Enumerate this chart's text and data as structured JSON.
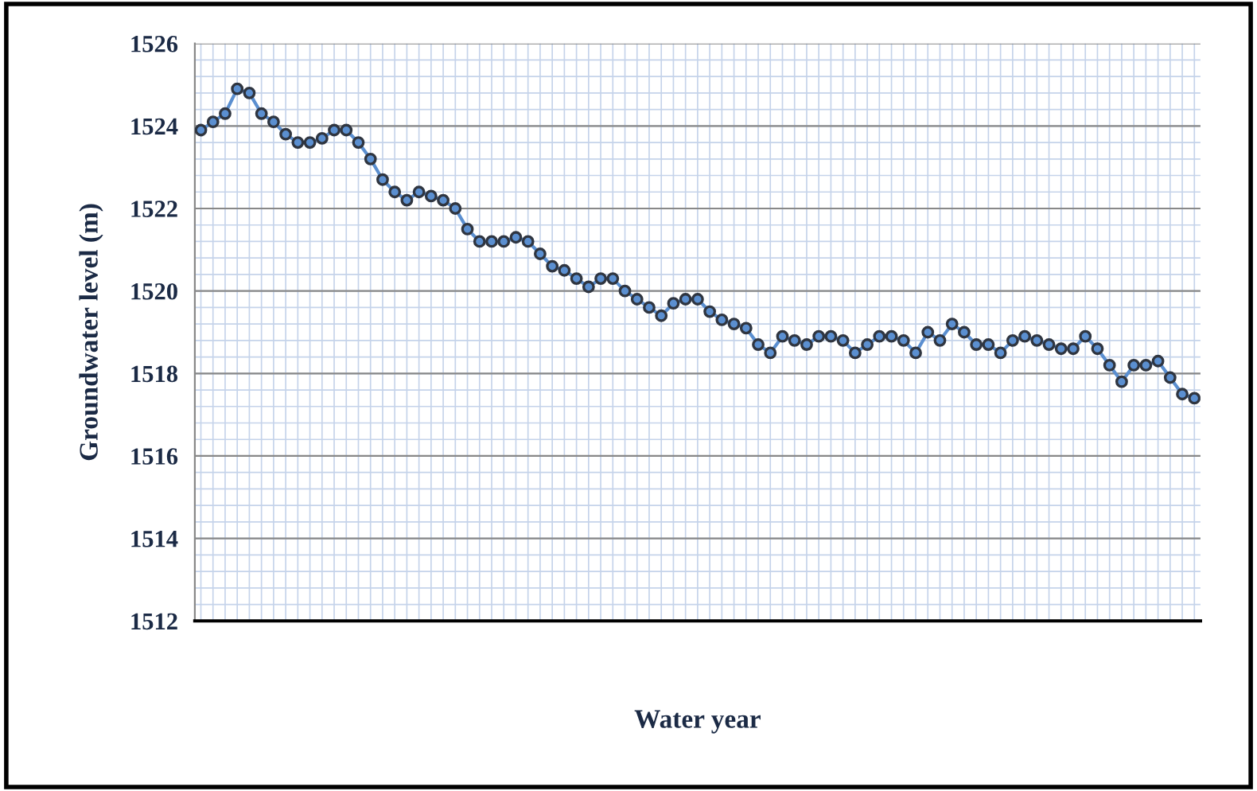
{
  "chart_data": {
    "type": "line",
    "xlabel": "Water year",
    "ylabel": "Groundwater level (m)",
    "categories": [
      null,
      null,
      null,
      null,
      null,
      null,
      null,
      null,
      null,
      null,
      null,
      null,
      null,
      null,
      null,
      null,
      null,
      null,
      null,
      null,
      null,
      null,
      null,
      null,
      null,
      null,
      null,
      null,
      null,
      null,
      null,
      null,
      null,
      null,
      null,
      null,
      null,
      null,
      null,
      null,
      null,
      null,
      null,
      null,
      null,
      null,
      null,
      null,
      null,
      null,
      null,
      null,
      null,
      null,
      null,
      null,
      null,
      null,
      null,
      null,
      null,
      null,
      null,
      null,
      null,
      null,
      null,
      null,
      null,
      null,
      null,
      null,
      null,
      null,
      null,
      null,
      null,
      null,
      null,
      null,
      null,
      null,
      null
    ],
    "series": [
      {
        "color": "#5b8fd0",
        "values": [
          1523.9,
          1524.1,
          1524.3,
          1524.9,
          1524.8,
          1524.3,
          1524.1,
          1523.8,
          1523.6,
          1523.6,
          1523.7,
          1523.9,
          1523.9,
          1523.6,
          1523.2,
          1522.7,
          1522.4,
          1522.2,
          1522.4,
          1522.3,
          1522.2,
          1522.0,
          1521.5,
          1521.2,
          1521.2,
          1521.2,
          1521.3,
          1521.2,
          1520.9,
          1520.6,
          1520.5,
          1520.3,
          1520.1,
          1520.3,
          1520.3,
          1520.0,
          1519.8,
          1519.6,
          1519.4,
          1519.7,
          1519.8,
          1519.8,
          1519.5,
          1519.3,
          1519.2,
          1519.1,
          1518.7,
          1518.5,
          1518.9,
          1518.8,
          1518.7,
          1518.9,
          1518.9,
          1518.8,
          1518.5,
          1518.7,
          1518.9,
          1518.9,
          1518.8,
          1518.5,
          1519.0,
          1518.8,
          1519.2,
          1519.0,
          1518.7,
          1518.7,
          1518.5,
          1518.8,
          1518.9,
          1518.8,
          1518.7,
          1518.6,
          1518.6,
          1518.9,
          1518.6,
          1518.2,
          1517.8,
          1518.2,
          1518.2,
          1518.3,
          1517.9,
          1517.5,
          1517.4
        ]
      }
    ],
    "ylim": [
      1512,
      1526
    ],
    "yticks": [
      1512,
      1514,
      1516,
      1518,
      1520,
      1522,
      1524,
      1526
    ],
    "grid": true,
    "marker": "circle",
    "line_style": "solid",
    "tick_labels": "y"
  }
}
